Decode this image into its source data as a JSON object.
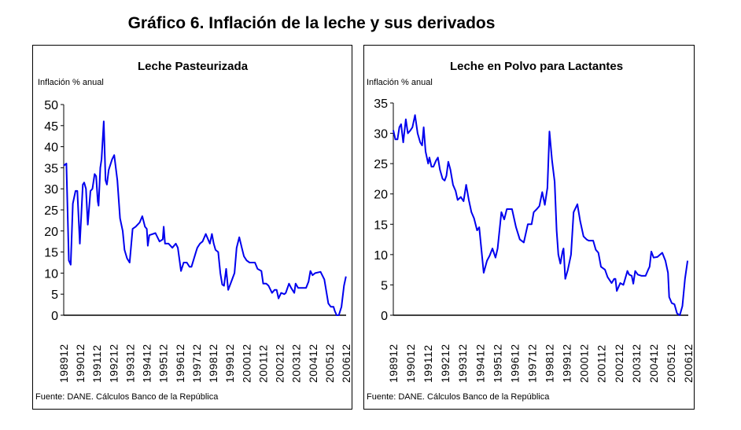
{
  "title": "Gráfico 6. Inflación de la leche y sus derivados",
  "chart_data": [
    {
      "type": "line",
      "title": "Leche Pasteurizada",
      "ylabel": "Inflación % anual",
      "xlabel": "",
      "source": "Fuente: DANE. Cálculos Banco de la República",
      "ylim": [
        0,
        50
      ],
      "yticks": [
        0,
        5,
        10,
        15,
        20,
        25,
        30,
        35,
        40,
        45,
        50
      ],
      "xlim": [
        1989.92,
        2006.92
      ],
      "x_tick_labels": [
        "198912",
        "199012",
        "199112",
        "199212",
        "199312",
        "199412",
        "199512",
        "199612",
        "199712",
        "199812",
        "199912",
        "200012",
        "200112",
        "200212",
        "200312",
        "200412",
        "200512",
        "200612"
      ],
      "grid": false,
      "color": "#0000ee",
      "series": [
        {
          "name": "Leche Pasteurizada",
          "x": [
            1989.92,
            1990.08,
            1990.23,
            1990.34,
            1990.47,
            1990.63,
            1990.74,
            1990.89,
            1991.07,
            1991.15,
            1991.26,
            1991.37,
            1991.53,
            1991.65,
            1991.78,
            1991.87,
            1991.97,
            1992.02,
            1992.12,
            1992.2,
            1992.33,
            1992.44,
            1992.52,
            1992.63,
            1992.83,
            1992.96,
            1993.15,
            1993.31,
            1993.47,
            1993.58,
            1993.73,
            1993.89,
            1994.07,
            1994.25,
            1994.49,
            1994.65,
            1994.81,
            1994.92,
            1994.98,
            1995.07,
            1995.44,
            1995.69,
            1995.88,
            1995.94,
            1996.02,
            1996.23,
            1996.46,
            1996.67,
            1996.79,
            1996.98,
            1997.14,
            1997.33,
            1997.49,
            1997.61,
            1997.88,
            1997.96,
            1998.12,
            1998.28,
            1998.47,
            1998.72,
            1998.84,
            1998.95,
            1999.06,
            1999.22,
            1999.35,
            1999.46,
            1999.57,
            1999.7,
            1999.82,
            2000.01,
            2000.2,
            2000.33,
            2000.49,
            2000.64,
            2000.77,
            2000.93,
            2001.11,
            2001.43,
            2001.59,
            2001.82,
            2001.93,
            2002.11,
            2002.25,
            2002.46,
            2002.61,
            2002.74,
            2002.85,
            2003.01,
            2003.2,
            2003.29,
            2003.48,
            2003.61,
            2003.8,
            2003.88,
            2004.03,
            2004.27,
            2004.51,
            2004.66,
            2004.77,
            2004.9,
            2005.06,
            2005.38,
            2005.61,
            2005.85,
            2006.0,
            2006.16,
            2006.24,
            2006.35,
            2006.48,
            2006.64,
            2006.79,
            2006.91
          ],
          "y": [
            35.5,
            36,
            13,
            12,
            26.5,
            29.5,
            29.5,
            17,
            31,
            31.5,
            30,
            21.5,
            29.5,
            30,
            33.5,
            33,
            27,
            26,
            35,
            37,
            46,
            32,
            31,
            34.5,
            37,
            38,
            32,
            23,
            20,
            15.5,
            13.5,
            12.5,
            20.5,
            21,
            22,
            23.5,
            21,
            20.5,
            16.5,
            19,
            19.5,
            17.5,
            18,
            21,
            17,
            17,
            16,
            17,
            16,
            10.5,
            12.5,
            12.5,
            11.5,
            11.5,
            15,
            16,
            17,
            17.5,
            19.3,
            17,
            19.3,
            17,
            15.5,
            15,
            10,
            7.3,
            7,
            11,
            6,
            8,
            10,
            16,
            18.5,
            16,
            14,
            13,
            12.5,
            12.5,
            11,
            10.5,
            7.5,
            7.5,
            7,
            5.3,
            6,
            6,
            4,
            5.3,
            5,
            5.3,
            7.5,
            6.5,
            5.3,
            7.5,
            6.5,
            6.5,
            6.5,
            8,
            10.5,
            9.5,
            10,
            10.3,
            8.5,
            2.8,
            2,
            2,
            1,
            0,
            0,
            2,
            7,
            9.2
          ]
        }
      ]
    },
    {
      "type": "line",
      "title": "Leche en Polvo para Lactantes",
      "ylabel": "Inflación % anual",
      "xlabel": "",
      "source": "Fuente: DANE. Cálculos Banco de la República",
      "ylim": [
        0,
        35
      ],
      "yticks": [
        0,
        5,
        10,
        15,
        20,
        25,
        30,
        35
      ],
      "xlim": [
        1989.92,
        2006.92
      ],
      "x_tick_labels": [
        "198912",
        "199012",
        "199112",
        "199212",
        "199312",
        "199412",
        "199512",
        "199612",
        "199712",
        "199812",
        "199912",
        "200012",
        "200112",
        "200212",
        "200312",
        "200412",
        "200512",
        "200612"
      ],
      "grid": false,
      "color": "#0000ee",
      "series": [
        {
          "name": "Leche en Polvo para Lactantes",
          "x": [
            1989.92,
            1990.04,
            1990.16,
            1990.27,
            1990.37,
            1990.49,
            1990.64,
            1990.76,
            1990.91,
            1991.02,
            1991.17,
            1991.32,
            1991.47,
            1991.58,
            1991.67,
            1991.78,
            1991.93,
            1992.0,
            1992.12,
            1992.23,
            1992.38,
            1992.49,
            1992.61,
            1992.76,
            1992.88,
            1992.98,
            1993.09,
            1993.21,
            1993.36,
            1993.51,
            1993.63,
            1993.81,
            1993.97,
            1994.12,
            1994.27,
            1994.42,
            1994.57,
            1994.75,
            1994.87,
            1995.13,
            1995.32,
            1995.47,
            1995.63,
            1995.81,
            1995.93,
            1996.15,
            1996.31,
            1996.46,
            1996.76,
            1996.99,
            1997.21,
            1997.44,
            1997.67,
            1997.89,
            1998.01,
            1998.19,
            1998.34,
            1998.5,
            1998.65,
            1998.8,
            1998.92,
            1999.07,
            1999.22,
            1999.33,
            1999.43,
            1999.55,
            1999.67,
            1999.73,
            1999.83,
            1999.98,
            2000.16,
            2000.31,
            2000.53,
            2000.69,
            2000.88,
            2001.06,
            2001.18,
            2001.44,
            2001.59,
            2001.74,
            2001.89,
            2002.12,
            2002.27,
            2002.5,
            2002.65,
            2002.72,
            2002.8,
            2003.0,
            2003.18,
            2003.41,
            2003.51,
            2003.66,
            2003.75,
            2003.86,
            2004.01,
            2004.23,
            2004.46,
            2004.61,
            2004.69,
            2004.79,
            2004.92,
            2005.14,
            2005.42,
            2005.6,
            2005.75,
            2005.82,
            2005.97,
            2006.12,
            2006.27,
            2006.43,
            2006.58,
            2006.73,
            2006.88
          ],
          "y": [
            30.5,
            29,
            29,
            31,
            31.5,
            28.5,
            32.3,
            30,
            30.5,
            31,
            33,
            30,
            28.5,
            28,
            31,
            27,
            25,
            26,
            24.5,
            24.5,
            25.5,
            26,
            24,
            22.5,
            22.2,
            23,
            25.3,
            24,
            21.5,
            20.5,
            19,
            19.5,
            18.8,
            21.5,
            19,
            17,
            16,
            14,
            14.5,
            7,
            9,
            9.8,
            11,
            9.5,
            11,
            17,
            15.8,
            17.5,
            17.5,
            14.5,
            12.5,
            12,
            15,
            15,
            17,
            17.5,
            18,
            20.3,
            18.2,
            21,
            30.3,
            25.5,
            22,
            14,
            10,
            8.5,
            10.5,
            11,
            6,
            7.5,
            10,
            17,
            18.3,
            15.5,
            13,
            12.5,
            12.3,
            12.3,
            10.8,
            10.3,
            8,
            7.5,
            6.3,
            5.3,
            6,
            6,
            4,
            5.3,
            5,
            7.3,
            6.7,
            6.5,
            5.2,
            7.3,
            6.7,
            6.5,
            6.5,
            7.5,
            8,
            10.5,
            9.5,
            9.6,
            10.3,
            9,
            7,
            3,
            2,
            1.8,
            0.3,
            0,
            1.5,
            6,
            9
          ]
        }
      ]
    }
  ]
}
